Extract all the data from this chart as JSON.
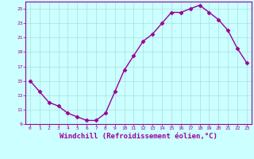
{
  "x": [
    0,
    1,
    2,
    3,
    4,
    5,
    6,
    7,
    8,
    9,
    10,
    11,
    12,
    13,
    14,
    15,
    16,
    17,
    18,
    19,
    20,
    21,
    22,
    23
  ],
  "y": [
    15,
    13.5,
    12,
    11.5,
    10.5,
    10,
    9.5,
    9.5,
    10.5,
    13.5,
    16.5,
    18.5,
    20.5,
    21.5,
    23,
    24.5,
    24.5,
    25,
    25.5,
    24.5,
    23.5,
    22,
    19.5,
    17.5
  ],
  "line_color": "#990099",
  "marker": "D",
  "marker_size": 2.5,
  "background_color": "#ccffff",
  "grid_color": "#aadddd",
  "xlabel": "Windchill (Refroidissement éolien,°C)",
  "xlabel_fontsize": 6.5,
  "tick_color": "#990099",
  "tick_label_color": "#990099",
  "ylim": [
    9,
    26
  ],
  "xlim": [
    -0.5,
    23.5
  ],
  "yticks": [
    9,
    11,
    13,
    15,
    17,
    19,
    21,
    23,
    25
  ],
  "xticks": [
    0,
    1,
    2,
    3,
    4,
    5,
    6,
    7,
    8,
    9,
    10,
    11,
    12,
    13,
    14,
    15,
    16,
    17,
    18,
    19,
    20,
    21,
    22,
    23
  ],
  "spine_color": "#990099",
  "axis_bg": "#ccffff",
  "line_width": 1.0
}
